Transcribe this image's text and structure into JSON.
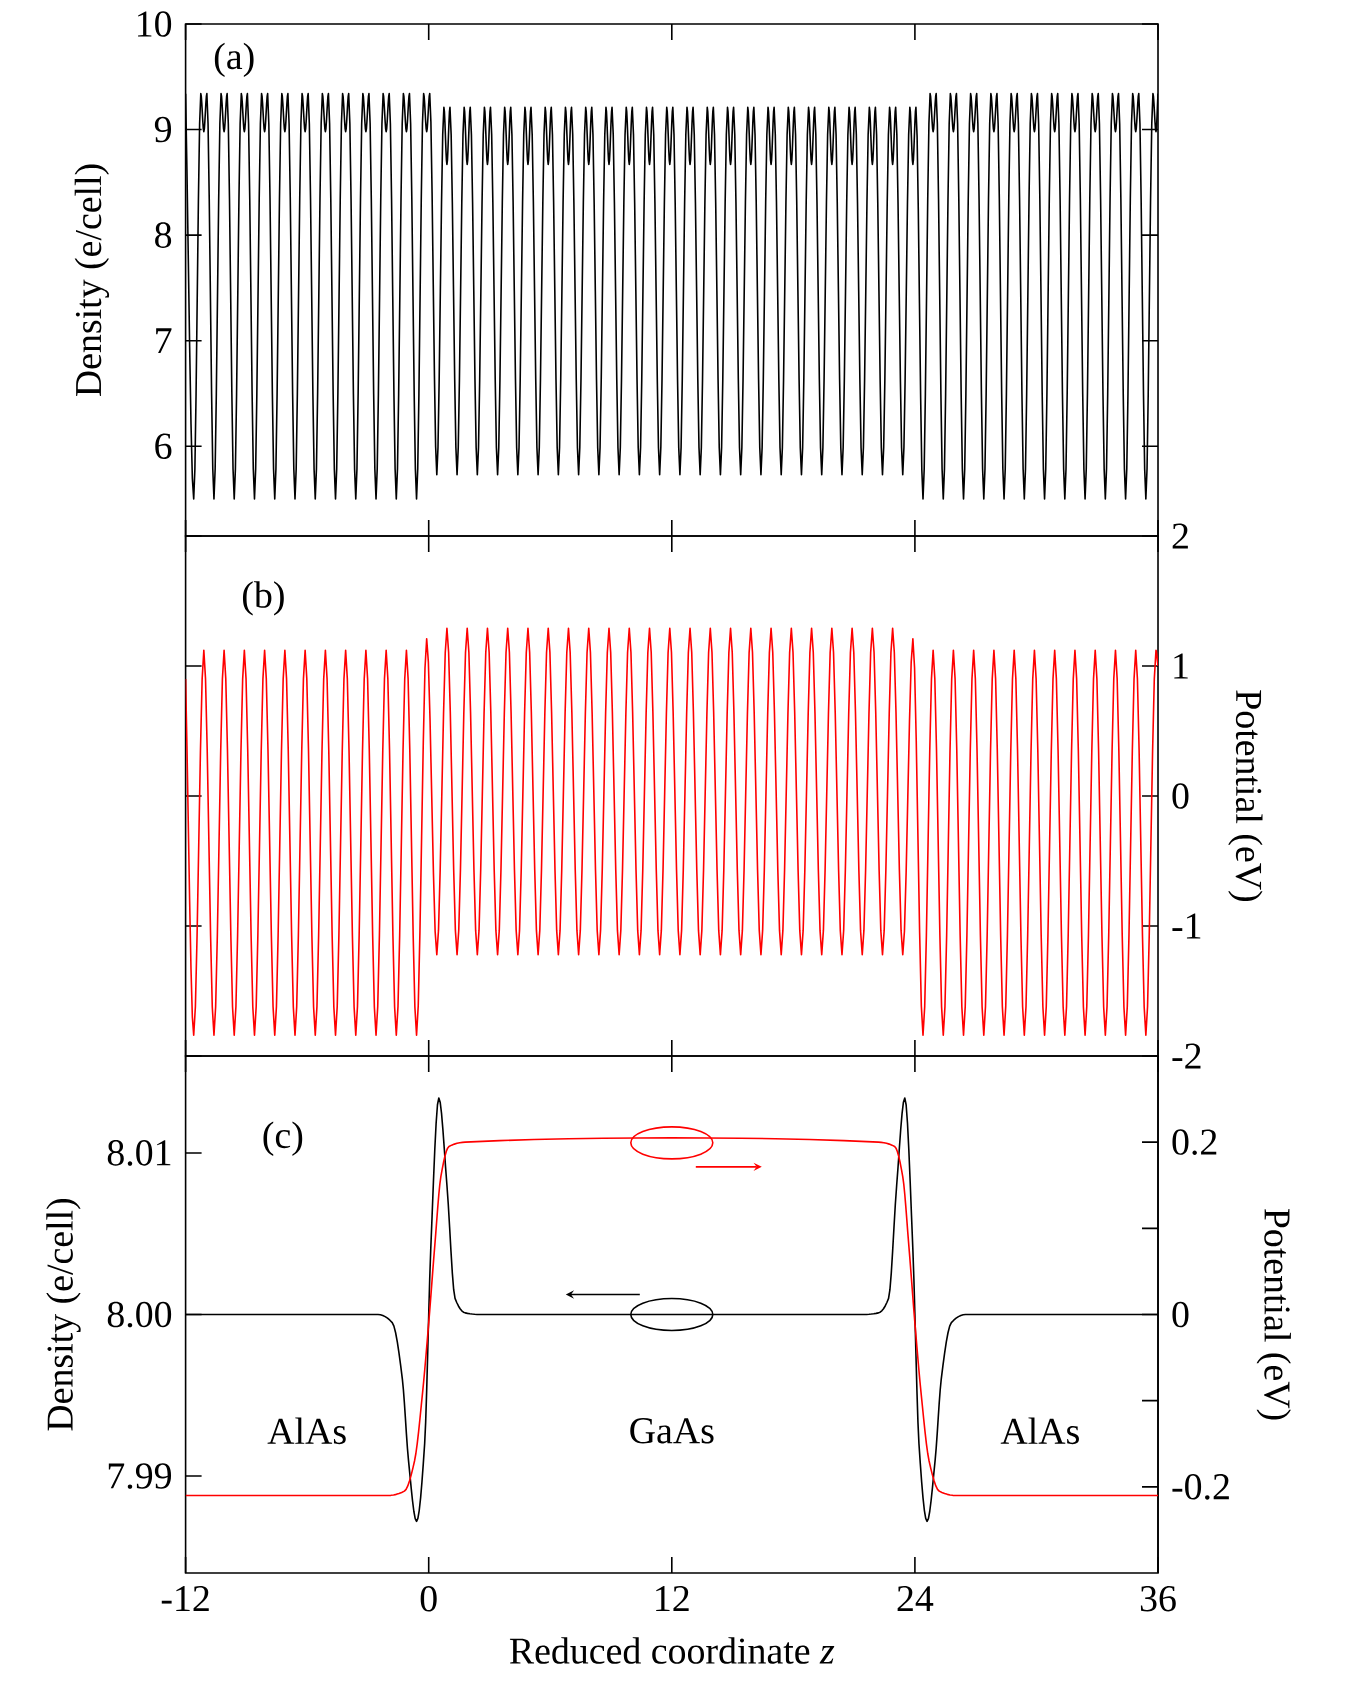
{
  "chart_data": [
    {
      "type": "line",
      "ylabel": "Density (e/cell)",
      "annotations": [
        "(a)"
      ],
      "xlim": [
        -12,
        36
      ],
      "xticks": [
        -12,
        0,
        12,
        24,
        36
      ],
      "ylim": [
        5.15,
        10
      ],
      "yticks": [
        6,
        7,
        8,
        9,
        10
      ],
      "tick_labels": "y",
      "series": [
        {
          "color": "#000000",
          "x": [
            -12,
            -11.6,
            -11.25,
            -11.1,
            -10.95,
            -10.6,
            -10.25,
            -10.1,
            -9.95,
            -9.6,
            -9.25,
            -9.1,
            -8.95,
            -8.6,
            -8.25,
            -8.1,
            -7.95,
            -7.6,
            -7.25,
            -7.1,
            -6.95,
            -6.6,
            -6.25,
            -6.1,
            -5.95,
            -5.6,
            -5.25,
            -5.1,
            -4.95,
            -4.6,
            -4.25,
            -4.1,
            -3.95,
            -3.6,
            -3.25,
            -3.1,
            -2.95,
            -2.6,
            -2.25,
            -2.1,
            -1.95,
            -1.6,
            -1.25,
            -1.1,
            -0.95,
            -0.6,
            -0.25,
            -0.1,
            0.05,
            0.4,
            0.75,
            0.9,
            1.05,
            1.4,
            1.75,
            1.9,
            2.05,
            2.4,
            2.75,
            2.9,
            3.05,
            3.4,
            3.75,
            3.9,
            4.05,
            4.4,
            4.75,
            4.9,
            5.05,
            5.4,
            5.75,
            5.9,
            6.05,
            6.4,
            6.75,
            6.9,
            7.05,
            7.4,
            7.75,
            7.9,
            8.05,
            8.4,
            8.75,
            8.9,
            9.05,
            9.4,
            9.75,
            9.9,
            10.05,
            10.4,
            10.75,
            10.9,
            11.05,
            11.4,
            11.75,
            11.9,
            12.05,
            12.4,
            12.75,
            12.9,
            13.05,
            13.4,
            13.75,
            13.9,
            14.05,
            14.4,
            14.75,
            14.9,
            15.05,
            15.4,
            15.75,
            15.9,
            16.05,
            16.4,
            16.75,
            16.9,
            17.05,
            17.4,
            17.75,
            17.9,
            18.05,
            18.4,
            18.75,
            18.9,
            19.05,
            19.4,
            19.75,
            19.9,
            20.05,
            20.4,
            20.75,
            20.9,
            21.05,
            21.4,
            21.75,
            21.9,
            22.05,
            22.4,
            22.75,
            22.9,
            23.05,
            23.4,
            23.75,
            23.9,
            24.05,
            24.4,
            24.75,
            24.9,
            25.05,
            25.4,
            25.75,
            25.9,
            26.05,
            26.4,
            26.75,
            26.9,
            27.05,
            27.4,
            27.75,
            27.9,
            28.05,
            28.4,
            28.75,
            28.9,
            29.05,
            29.4,
            29.75,
            29.9,
            30.05,
            30.4,
            30.75,
            30.9,
            31.05,
            31.4,
            31.75,
            31.9,
            32.05,
            32.4,
            32.75,
            32.9,
            33.05,
            33.4,
            33.75,
            33.9,
            34.05,
            34.4,
            34.75,
            34.9,
            35.05,
            35.4,
            35.75,
            35.9,
            36
          ],
          "values": [
            9.34,
            5.5,
            9.34,
            8.98,
            9.34,
            5.5,
            9.34,
            8.98,
            9.34,
            5.5,
            9.34,
            8.98,
            9.34,
            5.5,
            9.34,
            8.98,
            9.34,
            5.5,
            9.34,
            8.98,
            9.34,
            5.5,
            9.34,
            8.98,
            9.34,
            5.5,
            9.34,
            8.98,
            9.34,
            5.5,
            9.34,
            8.98,
            9.34,
            5.5,
            9.34,
            8.98,
            9.34,
            5.5,
            9.34,
            8.98,
            9.34,
            5.5,
            9.34,
            8.98,
            9.34,
            5.5,
            9.34,
            8.98,
            9.34,
            5.73,
            9.21,
            8.67,
            9.21,
            5.73,
            9.21,
            8.67,
            9.21,
            5.73,
            9.21,
            8.67,
            9.21,
            5.73,
            9.21,
            8.67,
            9.21,
            5.73,
            9.21,
            8.67,
            9.21,
            5.73,
            9.21,
            8.67,
            9.21,
            5.73,
            9.21,
            8.67,
            9.21,
            5.73,
            9.21,
            8.67,
            9.21,
            5.73,
            9.21,
            8.67,
            9.21,
            5.73,
            9.21,
            8.67,
            9.21,
            5.73,
            9.21,
            8.67,
            9.21,
            5.73,
            9.21,
            8.67,
            9.21,
            5.73,
            9.21,
            8.67,
            9.21,
            5.73,
            9.21,
            8.67,
            9.21,
            5.73,
            9.21,
            8.67,
            9.21,
            5.73,
            9.21,
            8.67,
            9.21,
            5.73,
            9.21,
            8.67,
            9.21,
            5.73,
            9.21,
            8.67,
            9.21,
            5.73,
            9.21,
            8.67,
            9.21,
            5.73,
            9.21,
            8.67,
            9.21,
            5.73,
            9.21,
            8.67,
            9.21,
            5.73,
            9.21,
            8.67,
            9.21,
            5.73,
            9.21,
            8.67,
            9.21,
            5.73,
            9.21,
            8.67,
            9.21,
            5.5,
            9.34,
            8.98,
            9.34,
            5.5,
            9.34,
            8.98,
            9.34,
            5.5,
            9.34,
            8.98,
            9.34,
            5.5,
            9.34,
            8.98,
            9.34,
            5.5,
            9.34,
            8.98,
            9.34,
            5.5,
            9.34,
            8.98,
            9.34,
            5.5,
            9.34,
            8.98,
            9.34,
            5.5,
            9.34,
            8.98,
            9.34,
            5.5,
            9.34,
            8.98,
            9.34,
            5.5,
            9.34,
            8.98,
            9.34,
            5.5,
            9.34,
            8.98,
            9.34,
            5.5,
            9.34,
            8.98,
            9.34
          ]
        }
      ]
    },
    {
      "type": "line",
      "ylabel": "Potential (eV)",
      "annotations": [
        "(b)"
      ],
      "xlim": [
        -12,
        36
      ],
      "xticks": [
        -12,
        0,
        12,
        24,
        36
      ],
      "ylim": [
        -2,
        2
      ],
      "yticks": [
        -2,
        -1,
        0,
        1,
        2
      ],
      "tick_labels": "y",
      "series": [
        {
          "color": "#ff0000",
          "x": [
            -12,
            -11.6,
            -11.1,
            -10.6,
            -10.1,
            -9.6,
            -9.1,
            -8.6,
            -8.1,
            -7.6,
            -7.1,
            -6.6,
            -6.1,
            -5.6,
            -5.1,
            -4.6,
            -4.1,
            -3.6,
            -3.1,
            -2.6,
            -2.1,
            -1.6,
            -1.1,
            -0.6,
            -0.1,
            0.4,
            0.9,
            1.4,
            1.9,
            2.4,
            2.9,
            3.4,
            3.9,
            4.4,
            4.9,
            5.4,
            5.9,
            6.4,
            6.9,
            7.4,
            7.9,
            8.4,
            8.9,
            9.4,
            9.9,
            10.4,
            10.9,
            11.4,
            11.9,
            12.4,
            12.9,
            13.4,
            13.9,
            14.4,
            14.9,
            15.4,
            15.9,
            16.4,
            16.9,
            17.4,
            17.9,
            18.4,
            18.9,
            19.4,
            19.9,
            20.4,
            20.9,
            21.4,
            21.9,
            22.4,
            22.9,
            23.4,
            23.9,
            24.4,
            24.9,
            25.4,
            25.9,
            26.4,
            26.9,
            27.4,
            27.9,
            28.4,
            28.9,
            29.4,
            29.9,
            30.4,
            30.9,
            31.4,
            31.9,
            32.4,
            32.9,
            33.4,
            33.9,
            34.4,
            34.9,
            35.4,
            35.9,
            36
          ],
          "values": [
            0.9,
            -1.84,
            1.12,
            -1.84,
            1.12,
            -1.84,
            1.12,
            -1.84,
            1.12,
            -1.84,
            1.12,
            -1.84,
            1.12,
            -1.84,
            1.12,
            -1.84,
            1.12,
            -1.84,
            1.12,
            -1.84,
            1.12,
            -1.84,
            1.12,
            -1.84,
            1.21,
            -1.22,
            1.29,
            -1.22,
            1.29,
            -1.22,
            1.29,
            -1.22,
            1.29,
            -1.22,
            1.29,
            -1.22,
            1.29,
            -1.22,
            1.29,
            -1.22,
            1.29,
            -1.22,
            1.29,
            -1.22,
            1.29,
            -1.22,
            1.29,
            -1.22,
            1.29,
            -1.22,
            1.29,
            -1.22,
            1.29,
            -1.22,
            1.29,
            -1.22,
            1.29,
            -1.22,
            1.29,
            -1.22,
            1.29,
            -1.22,
            1.29,
            -1.22,
            1.29,
            -1.22,
            1.29,
            -1.22,
            1.29,
            -1.22,
            1.29,
            -1.22,
            1.21,
            -1.84,
            1.12,
            -1.84,
            1.12,
            -1.84,
            1.12,
            -1.84,
            1.12,
            -1.84,
            1.12,
            -1.84,
            1.12,
            -1.84,
            1.12,
            -1.84,
            1.12,
            -1.84,
            1.12,
            -1.84,
            1.12,
            -1.84,
            1.12,
            -1.84,
            1.12,
            1.0
          ]
        }
      ]
    },
    {
      "type": "line",
      "xlabel": "Reduced coordinate *z*",
      "ylabel": "Density (e/cell)",
      "y2label": "Potential (eV)",
      "annotations": [
        "(c)",
        "AlAs",
        "GaAs",
        "AlAs"
      ],
      "xlim": [
        -12,
        36
      ],
      "xticks": [
        -12,
        0,
        12,
        24,
        36
      ],
      "ylim": [
        7.984,
        8.016
      ],
      "yticks": [
        7.99,
        {
          "value": 8,
          "label": "8.00"
        },
        8.01
      ],
      "y2lim": [
        -0.3,
        0.3
      ],
      "y2ticks": [
        -0.2,
        {
          "value": -0.1,
          "label": null
        },
        0,
        {
          "value": 0.1,
          "label": null
        },
        0.2
      ],
      "series": [
        {
          "color": "#000000",
          "x": [
            -12,
            -2.5,
            -1.8,
            -1.3,
            -1,
            -0.6,
            -0.2,
            0.1,
            0.5,
            0.9,
            1.3,
            1.8,
            2.5,
            21.5,
            22.2,
            22.7,
            23.1,
            23.5,
            23.9,
            24.2,
            24.6,
            25,
            25.3,
            25.8,
            26.5,
            36
          ],
          "values": [
            8.0,
            8.0,
            7.9995,
            7.996,
            7.991,
            7.9872,
            7.992,
            8.004,
            8.0134,
            8.008,
            8.001,
            8.0001,
            8.0,
            8.0,
            8.0001,
            8.001,
            8.008,
            8.0134,
            8.004,
            7.992,
            7.9872,
            7.991,
            7.996,
            7.9995,
            8.0,
            8.0
          ]
        },
        {
          "color": "#ff0000",
          "axis": "y2",
          "x": [
            -12,
            -2,
            -1.2,
            -0.7,
            -0.3,
            0,
            0.3,
            0.6,
            1,
            1.8,
            12,
            22.2,
            23,
            23.4,
            23.7,
            24,
            24.3,
            24.7,
            25.2,
            26,
            36
          ],
          "values": [
            -0.21,
            -0.21,
            -0.205,
            -0.17,
            -0.09,
            -0.01,
            0.08,
            0.16,
            0.195,
            0.2,
            0.205,
            0.2,
            0.195,
            0.16,
            0.08,
            -0.01,
            -0.09,
            -0.17,
            -0.205,
            -0.21,
            -0.21
          ]
        }
      ]
    }
  ]
}
